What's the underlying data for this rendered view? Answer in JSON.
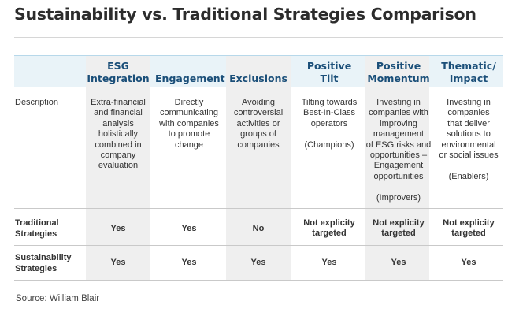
{
  "title": "Sustainability vs. Traditional Strategies Comparison",
  "columns": [
    {
      "line1": "ESG",
      "line2": "Integration"
    },
    {
      "line1": "Engagement",
      "line2": ""
    },
    {
      "line1": "Exclusions",
      "line2": ""
    },
    {
      "line1": "Positive",
      "line2": "Tilt"
    },
    {
      "line1": "Positive",
      "line2": "Momentum"
    },
    {
      "line1": "Thematic/",
      "line2": "Impact"
    }
  ],
  "rows": {
    "description": {
      "label": "Description",
      "cells": [
        {
          "lines": [
            "Extra-financial",
            "and financial",
            "analysis",
            "holistically",
            "combined in",
            "company",
            "evaluation"
          ]
        },
        {
          "lines": [
            "Directly",
            "communicating",
            "with companies",
            "to promote",
            "change"
          ]
        },
        {
          "lines": [
            "Avoiding",
            "controversial",
            "activities or",
            "groups of",
            "companies"
          ]
        },
        {
          "lines": [
            "Tilting towards",
            "Best-In-Class",
            "operators",
            "",
            "(Champions)"
          ]
        },
        {
          "lines": [
            "Investing in",
            "companies with",
            "improving",
            "management",
            "of ESG risks and",
            "opportunities –",
            "Engagement",
            "opportunities",
            "",
            "(Improvers)"
          ]
        },
        {
          "lines": [
            "Investing in",
            "companies",
            "that deliver",
            "solutions to",
            "environmental",
            "or social issues",
            "",
            "(Enablers)"
          ]
        }
      ]
    },
    "traditional": {
      "label_line1": "Traditional",
      "label_line2": "Strategies",
      "cells": [
        {
          "line1": "Yes",
          "line2": ""
        },
        {
          "line1": "Yes",
          "line2": ""
        },
        {
          "line1": "No",
          "line2": ""
        },
        {
          "line1": "Not explicity",
          "line2": "targeted"
        },
        {
          "line1": "Not explicity",
          "line2": "targeted"
        },
        {
          "line1": "Not explicity",
          "line2": "targeted"
        }
      ]
    },
    "sustainability": {
      "label_line1": "Sustainability",
      "label_line2": "Strategies",
      "cells": [
        {
          "line1": "Yes"
        },
        {
          "line1": "Yes"
        },
        {
          "line1": "Yes"
        },
        {
          "line1": "Yes"
        },
        {
          "line1": "Yes"
        },
        {
          "line1": "Yes"
        }
      ]
    }
  },
  "source": "Source: William Blair"
}
